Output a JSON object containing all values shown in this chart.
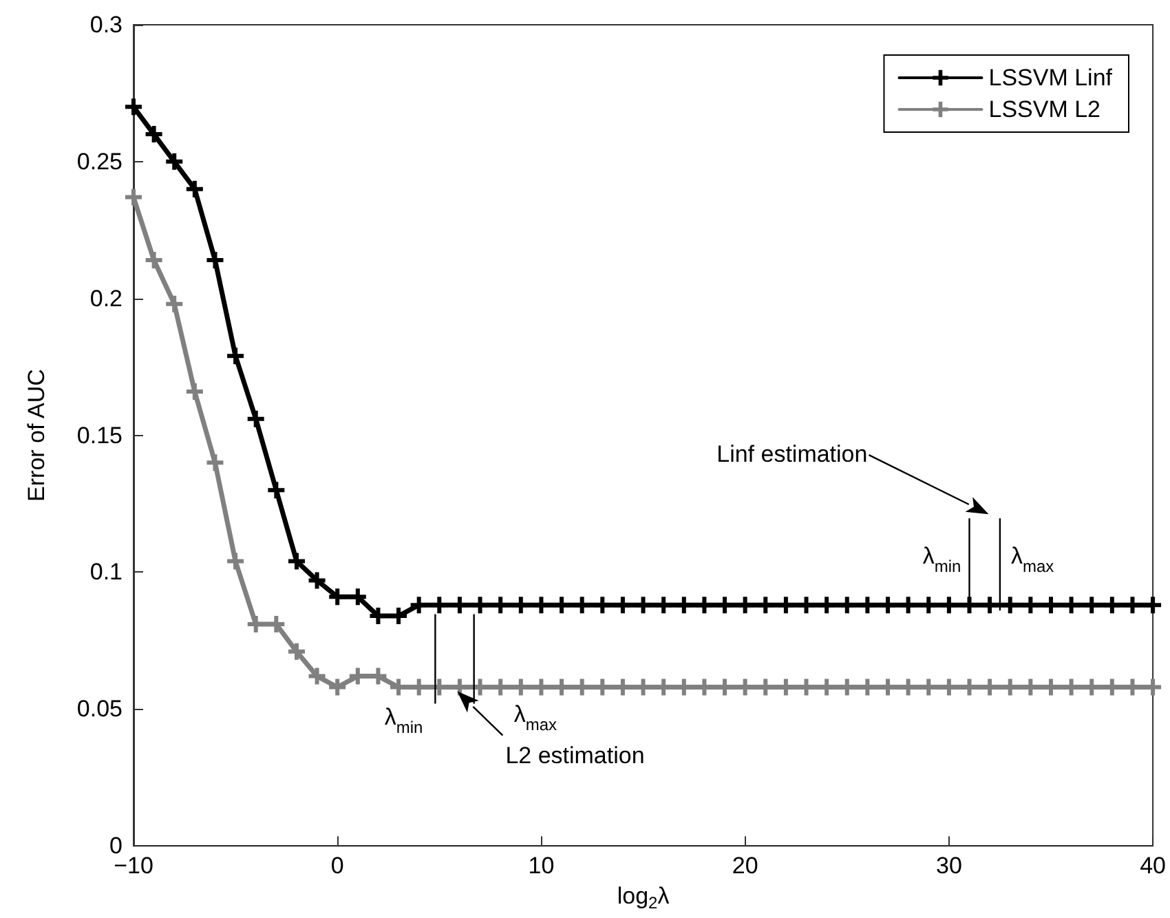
{
  "chart_data": {
    "type": "line",
    "xlabel": "log$_{2}$λ",
    "ylabel": "Error of AUC",
    "x": [
      -10,
      -9,
      -8,
      -7,
      -6,
      -5,
      -4,
      -3,
      -2,
      -1,
      0,
      1,
      2,
      3,
      4,
      5,
      6,
      7,
      8,
      9,
      10,
      11,
      12,
      13,
      14,
      15,
      16,
      17,
      18,
      19,
      20,
      21,
      22,
      23,
      24,
      25,
      26,
      27,
      28,
      29,
      30,
      31,
      32,
      33,
      34,
      35,
      36,
      37,
      38,
      39,
      40
    ],
    "series": [
      {
        "name": "LSSVM Linf",
        "color": "#000000",
        "marker": "cross",
        "values": [
          0.27,
          0.26,
          0.25,
          0.24,
          0.214,
          0.179,
          0.156,
          0.13,
          0.104,
          0.097,
          0.091,
          0.091,
          0.084,
          0.084,
          0.088,
          0.088,
          0.088,
          0.088,
          0.088,
          0.088,
          0.088,
          0.088,
          0.088,
          0.088,
          0.088,
          0.088,
          0.088,
          0.088,
          0.088,
          0.088,
          0.088,
          0.088,
          0.088,
          0.088,
          0.088,
          0.088,
          0.088,
          0.088,
          0.088,
          0.088,
          0.088,
          0.088,
          0.088,
          0.088,
          0.088,
          0.088,
          0.088,
          0.088,
          0.088,
          0.088,
          0.088
        ]
      },
      {
        "name": "LSSVM L2",
        "color": "#808080",
        "marker": "cross",
        "values": [
          0.237,
          0.214,
          0.198,
          0.166,
          0.14,
          0.104,
          0.081,
          0.081,
          0.071,
          0.062,
          0.058,
          0.062,
          0.062,
          0.058,
          0.058,
          0.058,
          0.058,
          0.058,
          0.058,
          0.058,
          0.058,
          0.058,
          0.058,
          0.058,
          0.058,
          0.058,
          0.058,
          0.058,
          0.058,
          0.058,
          0.058,
          0.058,
          0.058,
          0.058,
          0.058,
          0.058,
          0.058,
          0.058,
          0.058,
          0.058,
          0.058,
          0.058,
          0.058,
          0.058,
          0.058,
          0.058,
          0.058,
          0.058,
          0.058,
          0.058,
          0.058
        ]
      }
    ],
    "xlim": [
      -10,
      40
    ],
    "xticks": [
      {
        "value": -10,
        "label": "−10"
      },
      0,
      10,
      20,
      30,
      40
    ],
    "ylim": [
      0,
      0.3
    ],
    "yticks": [
      0,
      0.05,
      0.1,
      0.15,
      0.2,
      0.25,
      0.3
    ],
    "legend": "top right",
    "line_style": "solid",
    "annotations": [
      "Linf estimation",
      {
        "text": "λ$_{min}$",
        "x": 31,
        "y": 0.088
      },
      {
        "text": "λ$_{max}$",
        "x": 32.5,
        "y": 0.088
      },
      "L2 estimation",
      {
        "text": "λ$_{min}$",
        "x": 4.8,
        "y": 0.058
      },
      {
        "text": "λ$_{max}$",
        "x": 6.7,
        "y": 0.058
      }
    ]
  }
}
